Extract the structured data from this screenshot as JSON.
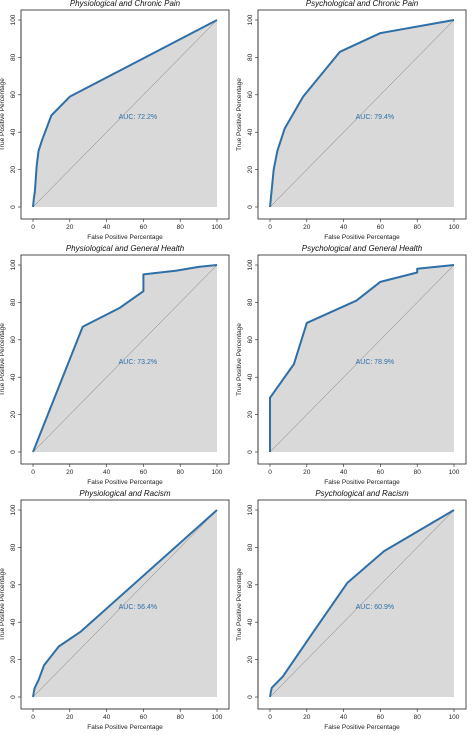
{
  "chart_data": [
    {
      "type": "line",
      "title": "Physiological and Chronic Pain",
      "xlabel": "False Positive Percentage",
      "ylabel": "True Positive Percentage",
      "xlim": [
        0,
        100
      ],
      "ylim": [
        0,
        100
      ],
      "xticks": [
        "0",
        "20",
        "40",
        "60",
        "80",
        "100"
      ],
      "yticks": [
        "0",
        "20",
        "40",
        "60",
        "80",
        "100"
      ],
      "annotation": "AUC: 72.2%",
      "series": [
        {
          "x": [
            0,
            0.5,
            1,
            1.5,
            2,
            3,
            5,
            10,
            20,
            100
          ],
          "y": [
            0,
            5,
            8,
            15,
            22,
            30,
            36,
            49,
            59,
            100
          ]
        }
      ],
      "colors": {
        "line": "#2e6fa8",
        "fill": "#d9d9d9"
      }
    },
    {
      "type": "line",
      "title": "Psychological and Chronic Pain",
      "xlabel": "False Positive Percentage",
      "ylabel": "True Positive Percentage",
      "xlim": [
        0,
        100
      ],
      "ylim": [
        0,
        100
      ],
      "xticks": [
        "0",
        "20",
        "40",
        "60",
        "80",
        "100"
      ],
      "yticks": [
        "0",
        "20",
        "40",
        "60",
        "80",
        "100"
      ],
      "annotation": "AUC: 79.4%",
      "series": [
        {
          "x": [
            0,
            0.5,
            1,
            2,
            4,
            8,
            18,
            38,
            60,
            100
          ],
          "y": [
            0,
            5,
            10,
            20,
            30,
            42,
            59,
            83,
            93,
            100
          ]
        }
      ],
      "colors": {
        "line": "#2e6fa8",
        "fill": "#d9d9d9"
      }
    },
    {
      "type": "line",
      "title": "Physiological and General Health",
      "xlabel": "False Positive Percentage",
      "ylabel": "True Positive Percentage",
      "xlim": [
        0,
        100
      ],
      "ylim": [
        0,
        100
      ],
      "xticks": [
        "0",
        "20",
        "40",
        "60",
        "80",
        "100"
      ],
      "yticks": [
        "0",
        "20",
        "40",
        "60",
        "80",
        "100"
      ],
      "annotation": "AUC: 73.2%",
      "series": [
        {
          "x": [
            0,
            27,
            47,
            60,
            60,
            60,
            78,
            90,
            100
          ],
          "y": [
            0,
            67,
            77,
            86,
            86,
            95,
            97,
            99,
            100
          ]
        }
      ],
      "colors": {
        "line": "#2e6fa8",
        "fill": "#d9d9d9"
      }
    },
    {
      "type": "line",
      "title": "Psychological and General Health",
      "xlabel": "False Positive Percentage",
      "ylabel": "True Positive Percentage",
      "xlim": [
        0,
        100
      ],
      "ylim": [
        0,
        100
      ],
      "xticks": [
        "0",
        "20",
        "40",
        "60",
        "80",
        "100"
      ],
      "yticks": [
        "0",
        "20",
        "40",
        "60",
        "80",
        "100"
      ],
      "annotation": "AUC: 78.9%",
      "series": [
        {
          "x": [
            0,
            0,
            13,
            20,
            47,
            60,
            80,
            80,
            100
          ],
          "y": [
            0,
            29,
            47,
            69,
            81,
            91,
            96,
            98,
            100
          ]
        }
      ],
      "colors": {
        "line": "#2e6fa8",
        "fill": "#d9d9d9"
      }
    },
    {
      "type": "line",
      "title": "Physiological and Racism",
      "xlabel": "False Positive Percentage",
      "ylabel": "True Positive Percentage",
      "xlim": [
        0,
        100
      ],
      "ylim": [
        0,
        100
      ],
      "xticks": [
        "0",
        "20",
        "40",
        "60",
        "80",
        "100"
      ],
      "yticks": [
        "0",
        "20",
        "40",
        "60",
        "80",
        "100"
      ],
      "annotation": "AUC: 56.4%",
      "series": [
        {
          "x": [
            0,
            0.5,
            1,
            3,
            6,
            14,
            26,
            100
          ],
          "y": [
            0,
            3,
            5,
            9,
            17,
            27,
            35,
            100
          ]
        }
      ],
      "colors": {
        "line": "#2e6fa8",
        "fill": "#d9d9d9"
      }
    },
    {
      "type": "line",
      "title": "Psychological and Racism",
      "xlabel": "False Positive Percentage",
      "ylabel": "True Positive Percentage",
      "xlim": [
        0,
        100
      ],
      "ylim": [
        0,
        100
      ],
      "xticks": [
        "0",
        "20",
        "40",
        "60",
        "80",
        "100"
      ],
      "yticks": [
        "0",
        "20",
        "40",
        "60",
        "80",
        "100"
      ],
      "annotation": "AUC: 60.9%",
      "series": [
        {
          "x": [
            0,
            0.5,
            1,
            7,
            23,
            42,
            62,
            100
          ],
          "y": [
            0,
            3,
            5,
            11,
            34,
            61,
            78,
            100
          ]
        }
      ],
      "colors": {
        "line": "#2e6fa8",
        "fill": "#d9d9d9"
      }
    }
  ]
}
